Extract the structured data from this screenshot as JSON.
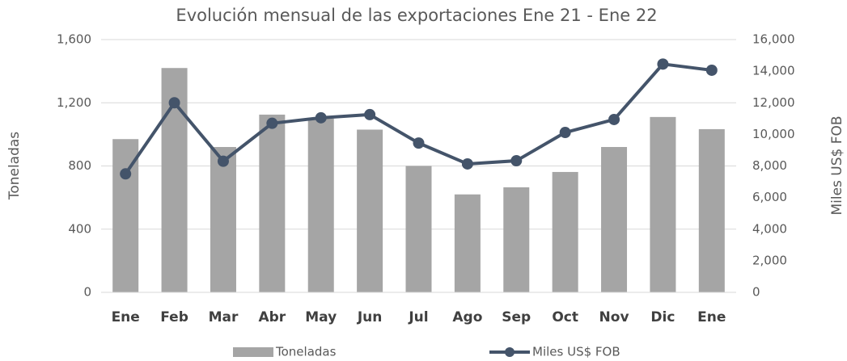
{
  "chart_data": {
    "type": "bar-line",
    "title": "Evolución mensual de las exportaciones Ene 21 - Ene 22",
    "ylabel": "Toneladas",
    "y2label": "Miles US$ FOB",
    "categories": [
      "Ene",
      "Feb",
      "Mar",
      "Abr",
      "May",
      "Jun",
      "Jul",
      "Ago",
      "Sep",
      "Oct",
      "Nov",
      "Dic",
      "Ene"
    ],
    "series": [
      {
        "name": "Toneladas",
        "type": "bar",
        "axis": "y",
        "color": "#a5a5a5",
        "values": [
          970,
          1420,
          920,
          1125,
          1100,
          1030,
          800,
          620,
          665,
          762,
          920,
          1110,
          1033
        ]
      },
      {
        "name": "Miles US$ FOB",
        "type": "line",
        "axis": "y2",
        "color": "#44546a",
        "values": [
          7500,
          12000,
          8300,
          10700,
          11050,
          11250,
          9450,
          8130,
          8330,
          10120,
          10940,
          14450,
          14060
        ]
      }
    ],
    "ylim": [
      0,
      1600
    ],
    "yticks": [
      0,
      400,
      800,
      {
        "value": 1200,
        "label": "1,200"
      },
      {
        "value": 1600,
        "label": "1,600"
      }
    ],
    "y2lim": [
      0,
      16000
    ],
    "y2ticks": [
      0,
      {
        "value": 2000,
        "label": "2,000"
      },
      {
        "value": 4000,
        "label": "4,000"
      },
      {
        "value": 6000,
        "label": "6,000"
      },
      {
        "value": 8000,
        "label": "8,000"
      },
      {
        "value": 10000,
        "label": "10,000"
      },
      {
        "value": 12000,
        "label": "12,000"
      },
      {
        "value": 14000,
        "label": "14,000"
      },
      {
        "value": 16000,
        "label": "16,000"
      }
    ],
    "grid": true,
    "legend": "bottom"
  }
}
